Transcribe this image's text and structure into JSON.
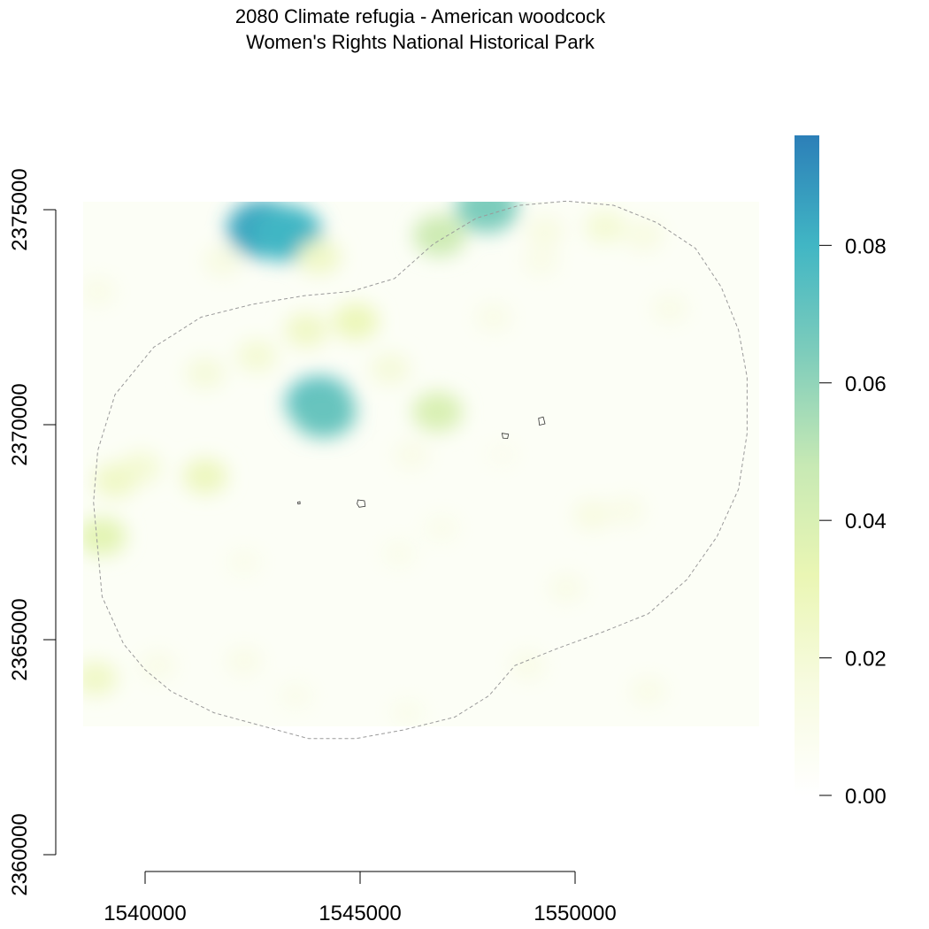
{
  "title": {
    "line1": "2080 Climate refugia - American woodcock",
    "line2": "Women's Rights National Historical Park"
  },
  "chart_data": {
    "type": "heatmap",
    "x_axis": {
      "ticks": [
        1540000,
        1545000,
        1550000
      ],
      "labels": [
        "1540000",
        "1545000",
        "1550000"
      ]
    },
    "y_axis": {
      "ticks": [
        2360000,
        2365000,
        2370000,
        2375000
      ],
      "labels": [
        "2360000",
        "2365000",
        "2370000",
        "2375000"
      ]
    },
    "legend": {
      "min": 0,
      "max": 0.096,
      "ticks": [
        0.0,
        0.02,
        0.04,
        0.06,
        0.08
      ],
      "labels": [
        "0.00",
        "0.02",
        "0.04",
        "0.06",
        "0.08"
      ],
      "colors": [
        "#ffffff",
        "#f7fbe0",
        "#eaf6b4",
        "#c7e9b4",
        "#7fcdbb",
        "#41b6c4",
        "#2c7fb8"
      ],
      "placement": "right"
    },
    "patches": [
      {
        "x": 1542750,
        "y": 2374550,
        "value": 0.085
      },
      {
        "x": 1543300,
        "y": 2374450,
        "value": 0.08
      },
      {
        "x": 1544050,
        "y": 2370500,
        "value": 0.075
      },
      {
        "x": 1544150,
        "y": 2370300,
        "value": 0.07
      },
      {
        "x": 1546850,
        "y": 2374400,
        "value": 0.045
      },
      {
        "x": 1547950,
        "y": 2375050,
        "value": 0.065
      },
      {
        "x": 1546800,
        "y": 2370300,
        "value": 0.04
      },
      {
        "x": 1544900,
        "y": 2372400,
        "value": 0.03
      },
      {
        "x": 1543750,
        "y": 2372200,
        "value": 0.025
      },
      {
        "x": 1544050,
        "y": 2373900,
        "value": 0.025
      },
      {
        "x": 1542600,
        "y": 2371600,
        "value": 0.02
      },
      {
        "x": 1541400,
        "y": 2371200,
        "value": 0.018
      },
      {
        "x": 1541800,
        "y": 2373800,
        "value": 0.015
      },
      {
        "x": 1539900,
        "y": 2369000,
        "value": 0.02
      },
      {
        "x": 1539300,
        "y": 2368700,
        "value": 0.025
      },
      {
        "x": 1541400,
        "y": 2368800,
        "value": 0.028
      },
      {
        "x": 1539000,
        "y": 2367400,
        "value": 0.035
      },
      {
        "x": 1538850,
        "y": 2364100,
        "value": 0.025
      },
      {
        "x": 1545700,
        "y": 2371300,
        "value": 0.018
      },
      {
        "x": 1549300,
        "y": 2374500,
        "value": 0.015
      },
      {
        "x": 1550700,
        "y": 2374600,
        "value": 0.02
      },
      {
        "x": 1551600,
        "y": 2374400,
        "value": 0.015
      },
      {
        "x": 1552200,
        "y": 2372700,
        "value": 0.012
      },
      {
        "x": 1549200,
        "y": 2373800,
        "value": 0.012
      },
      {
        "x": 1548100,
        "y": 2372500,
        "value": 0.012
      },
      {
        "x": 1546200,
        "y": 2369300,
        "value": 0.012
      },
      {
        "x": 1550400,
        "y": 2367900,
        "value": 0.015
      },
      {
        "x": 1551200,
        "y": 2368000,
        "value": 0.012
      },
      {
        "x": 1549800,
        "y": 2366200,
        "value": 0.012
      },
      {
        "x": 1548900,
        "y": 2364400,
        "value": 0.012
      },
      {
        "x": 1545900,
        "y": 2367000,
        "value": 0.01
      },
      {
        "x": 1546900,
        "y": 2367600,
        "value": 0.01
      },
      {
        "x": 1542300,
        "y": 2364500,
        "value": 0.012
      },
      {
        "x": 1540300,
        "y": 2364400,
        "value": 0.012
      },
      {
        "x": 1543500,
        "y": 2363700,
        "value": 0.01
      },
      {
        "x": 1546100,
        "y": 2363300,
        "value": 0.01
      },
      {
        "x": 1551700,
        "y": 2363800,
        "value": 0.012
      },
      {
        "x": 1538900,
        "y": 2373100,
        "value": 0.012
      },
      {
        "x": 1542300,
        "y": 2366800,
        "value": 0.01
      },
      {
        "x": 1548300,
        "y": 2369300,
        "value": 0.008
      }
    ],
    "buffer_boundary": [
      [
        1538800,
        2368200
      ],
      [
        1539000,
        2366000
      ],
      [
        1539500,
        2364900
      ],
      [
        1540000,
        2364300
      ],
      [
        1540600,
        2363800
      ],
      [
        1541600,
        2363300
      ],
      [
        1542700,
        2363000
      ],
      [
        1543800,
        2362700
      ],
      [
        1544900,
        2362700
      ],
      [
        1546000,
        2362900
      ],
      [
        1547200,
        2363200
      ],
      [
        1548000,
        2363700
      ],
      [
        1548600,
        2364400
      ],
      [
        1549600,
        2364800
      ],
      [
        1550700,
        2365200
      ],
      [
        1551700,
        2365600
      ],
      [
        1552600,
        2366400
      ],
      [
        1553300,
        2367400
      ],
      [
        1553800,
        2368500
      ],
      [
        1554000,
        2369800
      ],
      [
        1554000,
        2371100
      ],
      [
        1553800,
        2372200
      ],
      [
        1553400,
        2373200
      ],
      [
        1552800,
        2374100
      ],
      [
        1551900,
        2374700
      ],
      [
        1550900,
        2375100
      ],
      [
        1549800,
        2375200
      ],
      [
        1548700,
        2375100
      ],
      [
        1547700,
        2374800
      ],
      [
        1546700,
        2374200
      ],
      [
        1545800,
        2373400
      ],
      [
        1544800,
        2373100
      ],
      [
        1543700,
        2373000
      ],
      [
        1542500,
        2372800
      ],
      [
        1541300,
        2372500
      ],
      [
        1540200,
        2371800
      ],
      [
        1539300,
        2370700
      ],
      [
        1538900,
        2369400
      ],
      [
        1538800,
        2368200
      ]
    ],
    "park_units": [
      [
        [
          1543550,
          2368200
        ],
        [
          1543600,
          2368210
        ],
        [
          1543605,
          2368160
        ],
        [
          1543555,
          2368155
        ],
        [
          1543550,
          2368200
        ]
      ],
      [
        [
          1544950,
          2368250
        ],
        [
          1545100,
          2368230
        ],
        [
          1545120,
          2368100
        ],
        [
          1544980,
          2368080
        ],
        [
          1544930,
          2368160
        ],
        [
          1544950,
          2368250
        ]
      ],
      [
        [
          1548300,
          2369800
        ],
        [
          1548450,
          2369780
        ],
        [
          1548430,
          2369680
        ],
        [
          1548320,
          2369690
        ],
        [
          1548300,
          2369800
        ]
      ],
      [
        [
          1549150,
          2370150
        ],
        [
          1549260,
          2370180
        ],
        [
          1549300,
          2370020
        ],
        [
          1549170,
          2369990
        ],
        [
          1549150,
          2370150
        ]
      ]
    ]
  }
}
